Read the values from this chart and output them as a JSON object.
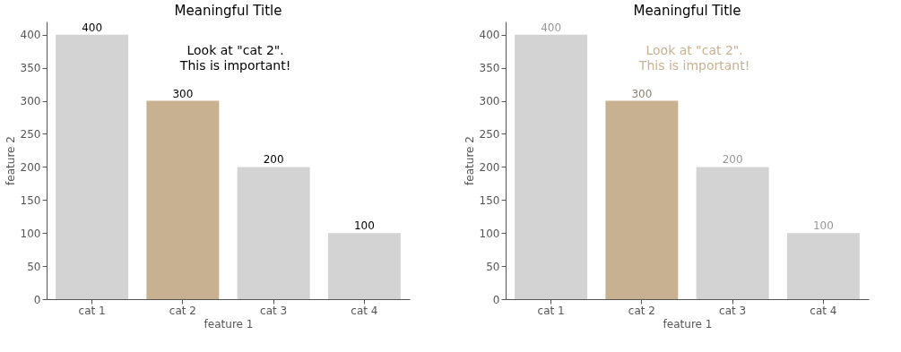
{
  "chart_data": [
    {
      "type": "bar",
      "title": "Meaningful Title",
      "xlabel": "feature 1",
      "ylabel": "feature 2",
      "categories": [
        "cat 1",
        "cat 2",
        "cat 3",
        "cat 4"
      ],
      "values": [
        400,
        300,
        200,
        100
      ],
      "colors": [
        "#d3d3d3",
        "#c8b191",
        "#d3d3d3",
        "#d3d3d3"
      ],
      "ylim": [
        0,
        420
      ],
      "yticks": [
        0,
        50,
        100,
        150,
        200,
        250,
        300,
        350,
        400
      ],
      "grid": false,
      "data_labels": true,
      "annotations": [
        "Look at \"cat 2\".\nThis is important!"
      ]
    },
    {
      "type": "bar",
      "title": "Meaningful Title",
      "xlabel": "feature 1",
      "ylabel": "feature 2",
      "categories": [
        "cat 1",
        "cat 2",
        "cat 3",
        "cat 4"
      ],
      "values": [
        400,
        300,
        200,
        100
      ],
      "colors": [
        "#d3d3d3",
        "#c8b191",
        "#d3d3d3",
        "#d3d3d3"
      ],
      "ylim": [
        0,
        420
      ],
      "yticks": [
        0,
        50,
        100,
        150,
        200,
        250,
        300,
        350,
        400
      ],
      "grid": false,
      "data_labels": true,
      "annotations": [
        "Look at \"cat 2\".\nThis is important!"
      ]
    }
  ]
}
